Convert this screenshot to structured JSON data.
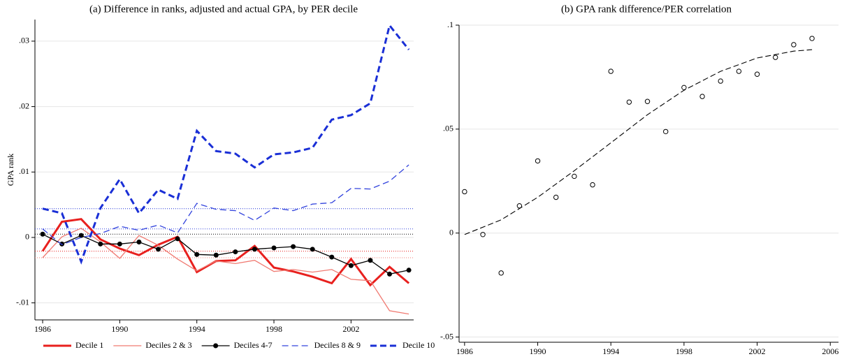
{
  "chart_data": [
    {
      "type": "line",
      "title": "(a) Difference in ranks, adjusted and actual GPA, by PER decile",
      "y_label": "GPA rank",
      "x": [
        1986,
        1987,
        1988,
        1989,
        1990,
        1991,
        1992,
        1993,
        1994,
        1995,
        1996,
        1997,
        1998,
        1999,
        2000,
        2001,
        2002,
        2003,
        2004,
        2005
      ],
      "series": [
        {
          "name": "Decile 1",
          "color": "#e8201e",
          "line_width": 3,
          "dash": "solid",
          "marker": "none",
          "values": [
            -0.0021,
            0.0024,
            0.0028,
            -0.0003,
            -0.0017,
            -0.0027,
            -0.0011,
            0.0001,
            -0.0053,
            -0.0036,
            -0.0035,
            -0.0013,
            -0.0046,
            -0.0052,
            -0.006,
            -0.007,
            -0.0033,
            -0.0073,
            -0.0045,
            -0.007
          ]
        },
        {
          "name": "Deciles 2 & 3",
          "color": "#f07a72",
          "line_width": 1.3,
          "dash": "solid",
          "marker": "none",
          "values": [
            -0.0031,
            0.0001,
            0.0014,
            -0.0007,
            -0.0032,
            0.0003,
            -0.0012,
            -0.0033,
            -0.0051,
            -0.0036,
            -0.004,
            -0.0035,
            -0.0052,
            -0.0049,
            -0.0053,
            -0.0049,
            -0.0064,
            -0.0066,
            -0.0112,
            -0.0117
          ]
        },
        {
          "name": "Deciles 4-7",
          "color": "#000000",
          "line_width": 1.3,
          "dash": "solid",
          "marker": "circle",
          "values": [
            0.0005,
            -0.001,
            0.0003,
            -0.001,
            -0.001,
            -0.0007,
            -0.0018,
            -0.0002,
            -0.0026,
            -0.0027,
            -0.0022,
            -0.0018,
            -0.0016,
            -0.0014,
            -0.0018,
            -0.003,
            -0.0043,
            -0.0035,
            -0.0056,
            -0.005
          ]
        },
        {
          "name": "Deciles 8 & 9",
          "color": "#3344dd",
          "line_width": 1.3,
          "dash": "dashed",
          "marker": "none",
          "values": [
            0.0013,
            -0.0011,
            0,
            0.0006,
            0.0017,
            0.0011,
            0.0019,
            0.0007,
            0.0052,
            0.0043,
            0.0041,
            0.0026,
            0.0045,
            0.0041,
            0.0051,
            0.0053,
            0.0075,
            0.0074,
            0.0086,
            0.0111
          ]
        },
        {
          "name": "Decile 10",
          "color": "#1a2fd6",
          "line_width": 3,
          "dash": "dashed",
          "marker": "none",
          "values": [
            0.0044,
            0.0037,
            -0.0037,
            0.0045,
            0.0089,
            0.0037,
            0.0073,
            0.0059,
            0.0163,
            0.0132,
            0.0128,
            0.0107,
            0.0127,
            0.013,
            0.0137,
            0.018,
            0.0187,
            0.0205,
            0.0324,
            0.0287
          ]
        }
      ],
      "baselines": true,
      "xlim": [
        1985.6,
        2005.25
      ],
      "xticks": [
        1986,
        1990,
        1994,
        1998,
        2002
      ],
      "ylim": [
        -0.0126,
        0.0333
      ],
      "yticks": [
        {
          "value": -0.01,
          "label": "-.01"
        },
        0,
        {
          "value": 0.01,
          "label": ".01"
        },
        {
          "value": 0.02,
          "label": ".02"
        },
        {
          "value": 0.03,
          "label": ".03"
        }
      ],
      "grid": true,
      "legend": "bottom"
    },
    {
      "type": "scatter",
      "title": "(b) GPA rank difference/PER correlation",
      "x": [
        1986,
        1987,
        1988,
        1989,
        1990,
        1991,
        1992,
        1993,
        1994,
        1995,
        1996,
        1997,
        1998,
        1999,
        2000,
        2001,
        2002,
        2003,
        2004,
        2005
      ],
      "values": [
        0.0199,
        -0.0007,
        -0.0192,
        0.0131,
        0.0347,
        0.0172,
        0.0273,
        0.0232,
        0.0778,
        0.063,
        0.0633,
        0.0488,
        0.07,
        0.0657,
        0.0731,
        0.0778,
        0.0764,
        0.0845,
        0.0906,
        0.0936
      ],
      "color": "#000000",
      "fit": {
        "color": "#000000",
        "dash": "dashed",
        "x": [
          1986,
          1988,
          1990,
          1992,
          1994,
          1996,
          1998,
          2000,
          2002,
          2004,
          2005
        ],
        "values": [
          -0.0007,
          0.0064,
          0.0172,
          0.03,
          0.0434,
          0.0569,
          0.0687,
          0.0778,
          0.0842,
          0.0875,
          0.0882
        ]
      },
      "xlim": [
        1985.7,
        2006.45
      ],
      "xticks": [
        1986,
        1990,
        1994,
        1998,
        2002,
        2006
      ],
      "ylim": [
        -0.0525,
        0.1
      ],
      "yticks": [
        {
          "value": -0.05,
          "label": "-.05"
        },
        0,
        {
          "value": 0.05,
          "label": ".05"
        },
        {
          "value": 0.1,
          "label": ".1"
        }
      ],
      "grid": true
    }
  ]
}
